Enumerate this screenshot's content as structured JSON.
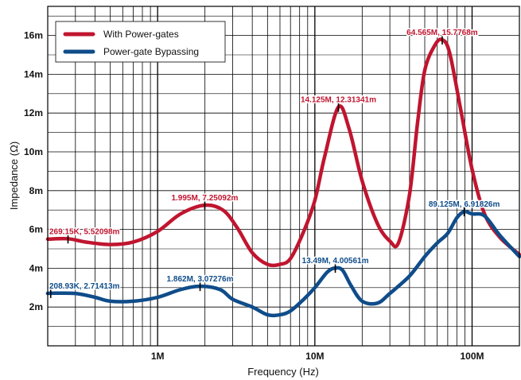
{
  "chart_data": {
    "type": "line",
    "title": "",
    "xlabel": "Frequency (Hz)",
    "ylabel": "Impedance (Ω)",
    "xscale": "log",
    "xlim": [
      200000,
      200000000
    ],
    "ylim": [
      0,
      0.0175
    ],
    "grid": true,
    "legend_position": "top-left",
    "x_ticks": [
      {
        "value": 1000000,
        "label": "1M"
      },
      {
        "value": 10000000,
        "label": "10M"
      },
      {
        "value": 100000000,
        "label": "100M"
      }
    ],
    "y_ticks": [
      {
        "value": 0.002,
        "label": "2m"
      },
      {
        "value": 0.004,
        "label": "4m"
      },
      {
        "value": 0.006,
        "label": "6m"
      },
      {
        "value": 0.008,
        "label": "8m"
      },
      {
        "value": 0.01,
        "label": "10m"
      },
      {
        "value": 0.012,
        "label": "12m"
      },
      {
        "value": 0.014,
        "label": "14m"
      },
      {
        "value": 0.016,
        "label": "16m"
      }
    ],
    "series": [
      {
        "name": "With Power-gates",
        "color": "#c0152f",
        "points": [
          [
            200000,
            0.0055
          ],
          [
            269150,
            0.00552
          ],
          [
            350000,
            0.00535
          ],
          [
            500000,
            0.00522
          ],
          [
            700000,
            0.00535
          ],
          [
            1000000,
            0.0059
          ],
          [
            1400000,
            0.0068
          ],
          [
            1995000,
            0.00725
          ],
          [
            2600000,
            0.007
          ],
          [
            3200000,
            0.0061
          ],
          [
            4000000,
            0.0048
          ],
          [
            5000000,
            0.0042
          ],
          [
            6000000,
            0.0042
          ],
          [
            7000000,
            0.0045
          ],
          [
            8500000,
            0.0059
          ],
          [
            10000000,
            0.0075
          ],
          [
            11500000,
            0.0097
          ],
          [
            14125000,
            0.01231
          ],
          [
            16500000,
            0.0112
          ],
          [
            20000000,
            0.0085
          ],
          [
            25000000,
            0.0063
          ],
          [
            30000000,
            0.0054
          ],
          [
            34000000,
            0.0053
          ],
          [
            40000000,
            0.0078
          ],
          [
            45000000,
            0.0115
          ],
          [
            50000000,
            0.0142
          ],
          [
            58000000,
            0.0155
          ],
          [
            64565000,
            0.01578
          ],
          [
            72000000,
            0.0151
          ],
          [
            85000000,
            0.0121
          ],
          [
            100000000,
            0.0091
          ],
          [
            120000000,
            0.0068
          ],
          [
            150000000,
            0.0056
          ],
          [
            200000000,
            0.0047
          ]
        ]
      },
      {
        "name": "Power-gate Bypassing",
        "color": "#0f4c8a",
        "points": [
          [
            200000,
            0.0027
          ],
          [
            208930,
            0.00271
          ],
          [
            300000,
            0.0027
          ],
          [
            400000,
            0.0025
          ],
          [
            500000,
            0.0023
          ],
          [
            700000,
            0.0023
          ],
          [
            1000000,
            0.0025
          ],
          [
            1400000,
            0.0029
          ],
          [
            1862000,
            0.00307
          ],
          [
            2500000,
            0.0029
          ],
          [
            3000000,
            0.0024
          ],
          [
            4000000,
            0.002
          ],
          [
            5000000,
            0.0016
          ],
          [
            6000000,
            0.0016
          ],
          [
            7000000,
            0.0018
          ],
          [
            8500000,
            0.0024
          ],
          [
            10000000,
            0.003
          ],
          [
            12000000,
            0.0038
          ],
          [
            13490000,
            0.00401
          ],
          [
            15000000,
            0.0039
          ],
          [
            17000000,
            0.0031
          ],
          [
            20000000,
            0.0023
          ],
          [
            25000000,
            0.0022
          ],
          [
            30000000,
            0.0027
          ],
          [
            40000000,
            0.0036
          ],
          [
            50000000,
            0.0046
          ],
          [
            60000000,
            0.0053
          ],
          [
            70000000,
            0.0058
          ],
          [
            80000000,
            0.0066
          ],
          [
            89125000,
            0.00692
          ],
          [
            100000000,
            0.0068
          ],
          [
            120000000,
            0.0067
          ],
          [
            150000000,
            0.0057
          ],
          [
            200000000,
            0.0046
          ]
        ]
      }
    ],
    "annotations": [
      {
        "series": 0,
        "x": 269150,
        "y": 0.00552,
        "text": "269.15K, 5.52098m",
        "align": "start"
      },
      {
        "series": 0,
        "x": 1995000,
        "y": 0.00725,
        "text": "1.995M, 7.25092m",
        "align": "middle"
      },
      {
        "series": 0,
        "x": 14125000,
        "y": 0.01231,
        "text": "14.125M, 12.31341m",
        "align": "middle"
      },
      {
        "series": 0,
        "x": 64565000,
        "y": 0.01578,
        "text": "64.565M, 15.7768m",
        "align": "middle"
      },
      {
        "series": 1,
        "x": 208930,
        "y": 0.00271,
        "text": "208.93K, 2.71413m",
        "align": "start"
      },
      {
        "series": 1,
        "x": 1862000,
        "y": 0.00307,
        "text": "1.862M, 3.07276m",
        "align": "middle"
      },
      {
        "series": 1,
        "x": 13490000,
        "y": 0.00401,
        "text": "13.49M, 4.00561m",
        "align": "middle"
      },
      {
        "series": 1,
        "x": 89125000,
        "y": 0.00692,
        "text": "89.125M, 6.91826m",
        "align": "middle"
      }
    ]
  }
}
